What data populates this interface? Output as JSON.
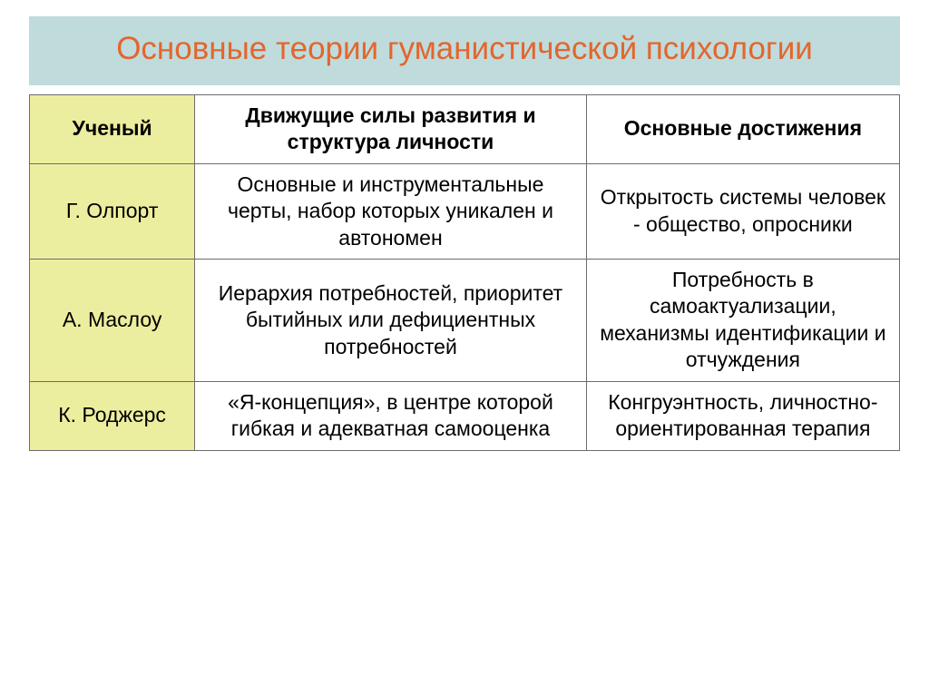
{
  "title": "Основные теории  гуманистической психологии",
  "colors": {
    "title_bg": "#c0dbdb",
    "title_text": "#e2662e",
    "border": "#6c6c6c",
    "col1_bg": "#ecee9f"
  },
  "table": {
    "columns": [
      "Ученый",
      "Движущие силы развития и структура личности",
      "Основные достижения"
    ],
    "column_widths_pct": [
      19,
      45,
      36
    ],
    "header_fontweight": 700,
    "cell_fontsize": 23,
    "rows": [
      {
        "scientist": "Г. Олпорт",
        "forces": "Основные и инструментальные черты, набор которых уникален и автономен",
        "achievements": "Открытость системы человек - общество, опросники"
      },
      {
        "scientist": "А. Маслоу",
        "forces": "Иерархия потребностей, приоритет бытийных или дефициентных потребностей",
        "achievements": "Потребность в самоактуализации, механизмы идентификации и отчуждения"
      },
      {
        "scientist": "К. Роджерс",
        "forces": "«Я-концепция», в центре которой гибкая и адекватная самооценка",
        "achievements": "Конгруэнтность, личностно-ориентированная терапия"
      }
    ]
  }
}
